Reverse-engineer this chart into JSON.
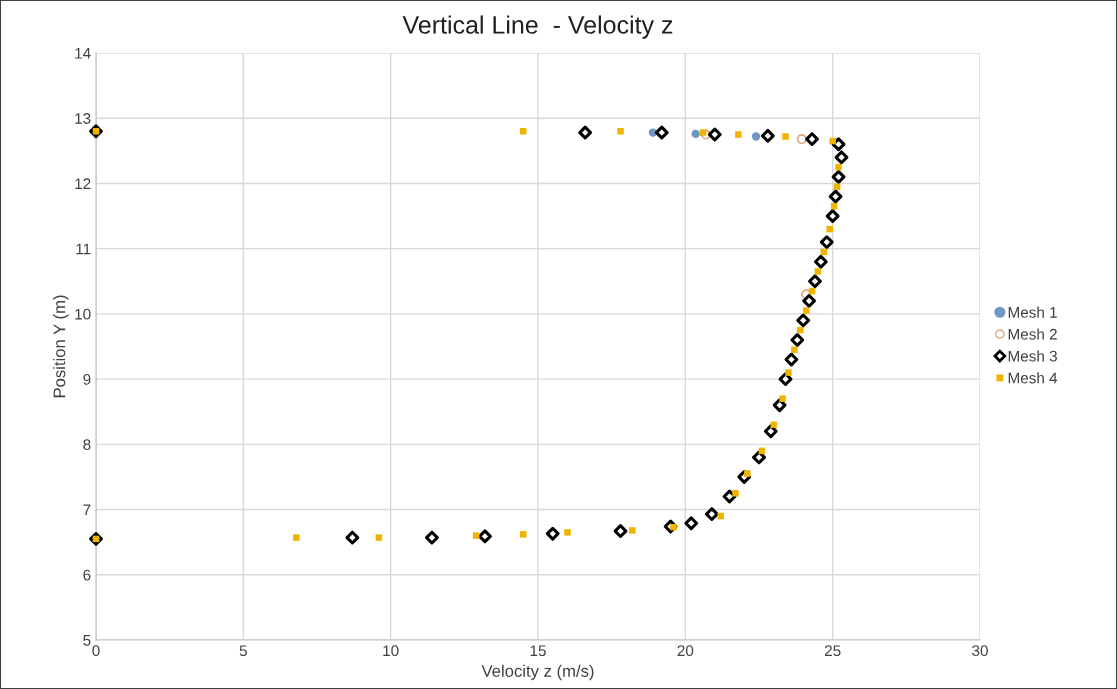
{
  "chart_data": {
    "type": "scatter",
    "title": "Vertical Line  - Velocity z",
    "xlabel": "Velocity z (m/s)",
    "ylabel": "Position Y (m)",
    "xlim": [
      0,
      30
    ],
    "xticks": [
      0,
      5,
      10,
      15,
      20,
      25,
      30
    ],
    "ylim": [
      5,
      14
    ],
    "yticks": [
      5,
      6,
      7,
      8,
      9,
      10,
      11,
      12,
      13,
      14
    ],
    "grid": true,
    "legend": "right",
    "series": [
      {
        "name": "Mesh 1",
        "color": "#6f97c4",
        "marker": "circle",
        "x": [
          18.9,
          20.35,
          22.4
        ],
        "values": [
          12.78,
          12.76,
          12.72
        ]
      },
      {
        "name": "Mesh 2",
        "color": "#e0a982",
        "marker": "circle",
        "x": [
          20.7,
          23.95,
          24.1
        ],
        "values": [
          12.75,
          12.68,
          10.3
        ]
      },
      {
        "name": "Mesh 3",
        "color": "#000000",
        "marker": "diamond",
        "x": [
          0,
          8.7,
          11.4,
          13.2,
          15.5,
          17.8,
          19.5,
          20.2,
          20.9,
          21.5,
          22.0,
          22.5,
          22.9,
          23.2,
          23.4,
          23.6,
          23.8,
          24.0,
          24.2,
          24.4,
          24.6,
          24.8,
          25.0,
          25.1,
          25.2,
          25.3,
          25.2,
          24.3,
          22.8,
          21.0,
          19.2,
          16.6,
          0
        ],
        "values": [
          6.55,
          6.57,
          6.57,
          6.59,
          6.63,
          6.67,
          6.74,
          6.79,
          6.93,
          7.2,
          7.5,
          7.8,
          8.2,
          8.6,
          9.0,
          9.3,
          9.6,
          9.9,
          10.2,
          10.5,
          10.8,
          11.1,
          11.5,
          11.8,
          12.1,
          12.4,
          12.6,
          12.68,
          12.73,
          12.75,
          12.78,
          12.78,
          12.8
        ]
      },
      {
        "name": "Mesh 4",
        "color": "#f0b400",
        "marker": "square",
        "x": [
          0,
          6.8,
          9.6,
          12.9,
          14.5,
          16.0,
          18.2,
          19.6,
          21.2,
          21.7,
          22.1,
          22.6,
          23.0,
          23.3,
          23.5,
          23.7,
          23.9,
          24.1,
          24.3,
          24.5,
          24.7,
          24.9,
          25.05,
          25.15,
          25.2,
          25.0,
          23.4,
          21.8,
          20.6,
          17.8,
          14.5,
          0
        ],
        "values": [
          6.55,
          6.57,
          6.57,
          6.6,
          6.62,
          6.65,
          6.68,
          6.73,
          6.9,
          7.25,
          7.55,
          7.9,
          8.3,
          8.7,
          9.1,
          9.45,
          9.75,
          10.05,
          10.35,
          10.65,
          10.95,
          11.3,
          11.65,
          11.95,
          12.25,
          12.65,
          12.72,
          12.75,
          12.78,
          12.8,
          12.8,
          12.8
        ]
      }
    ]
  }
}
